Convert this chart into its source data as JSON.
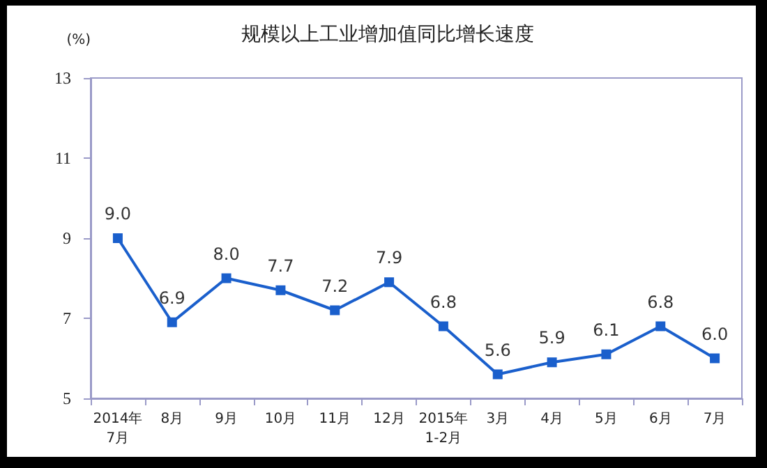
{
  "chart_data": {
    "type": "line",
    "title": "规模以上工业增加值同比增长速度",
    "ylabel": "(%)",
    "categories": [
      "2014年\n7月",
      "8月",
      "9月",
      "10月",
      "11月",
      "12月",
      "2015年\n1-2月",
      "3月",
      "4月",
      "5月",
      "6月",
      "7月"
    ],
    "series": [
      {
        "color": "#1a5fcc",
        "values": [
          9.0,
          6.9,
          8.0,
          7.7,
          7.2,
          7.9,
          6.8,
          5.6,
          5.9,
          6.1,
          6.8,
          6.0
        ],
        "value_labels": [
          "9.0",
          "6.9",
          "8.0",
          "7.7",
          "7.2",
          "7.9",
          "6.8",
          "5.6",
          "5.9",
          "6.1",
          "6.8",
          "6.0"
        ]
      }
    ],
    "ylim": [
      5,
      13
    ],
    "yticks": [
      5,
      7,
      9,
      11,
      13
    ],
    "grid": false,
    "marker": "square",
    "line_style": "solid"
  }
}
